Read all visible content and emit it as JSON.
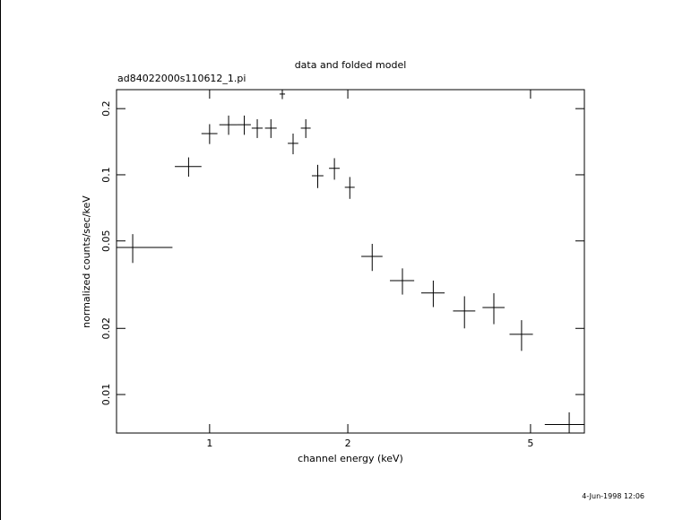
{
  "chart_data": {
    "type": "scatter",
    "title": "data and folded model",
    "subtitle": "ad84022000s110612_1.pi",
    "x_label": "channel energy (keV)",
    "y_label": "normalized counts/sec/keV",
    "footer": "4-Jun-1998 12:06",
    "log_x": true,
    "log_y": true,
    "xlim": [
      0.627,
      6.55
    ],
    "ylim": [
      0.00668,
      0.244
    ],
    "xticks": [
      1,
      2,
      5
    ],
    "yticks": [
      0.01,
      0.02,
      0.05,
      0.1,
      0.2
    ],
    "series": [
      {
        "color": "#000000",
        "x": [
          0.68,
          0.9,
          1.0,
          1.1,
          1.19,
          1.27,
          1.36,
          1.44,
          1.52,
          1.62,
          1.72,
          1.87,
          2.02,
          2.26,
          2.63,
          3.07,
          3.59,
          4.16,
          4.78,
          6.07
        ],
        "xerr": [
          0.15,
          0.06,
          0.04,
          0.05,
          0.04,
          0.035,
          0.04,
          0.02,
          0.04,
          0.04,
          0.05,
          0.05,
          0.05,
          0.12,
          0.16,
          0.18,
          0.2,
          0.23,
          0.28,
          0.7
        ],
        "values": [
          0.0467,
          0.109,
          0.154,
          0.169,
          0.169,
          0.163,
          0.163,
          0.233,
          0.139,
          0.163,
          0.099,
          0.107,
          0.0877,
          0.0425,
          0.033,
          0.029,
          0.024,
          0.0249,
          0.0188,
          0.0073
        ],
        "yerr": [
          0.007,
          0.011,
          0.016,
          0.017,
          0.017,
          0.016,
          0.016,
          0.012,
          0.015,
          0.016,
          0.012,
          0.012,
          0.01,
          0.006,
          0.0045,
          0.004,
          0.004,
          0.004,
          0.003,
          0.001
        ]
      }
    ]
  }
}
